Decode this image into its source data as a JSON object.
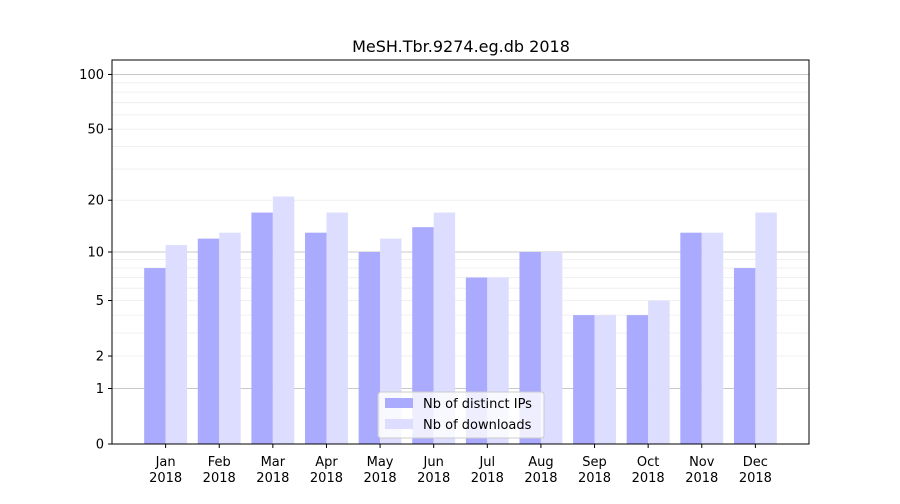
{
  "chart_data": {
    "type": "bar",
    "title": "MeSH.Tbr.9274.eg.db 2018",
    "xlabel": "",
    "ylabel": "",
    "y_scale": "log1p",
    "ylim": [
      0,
      120
    ],
    "y_ticks": [
      {
        "value": 0,
        "label": "0"
      },
      {
        "value": 1,
        "label": "1"
      },
      {
        "value": 2,
        "label": "2"
      },
      {
        "value": 5,
        "label": "5"
      },
      {
        "value": 10,
        "label": "10"
      },
      {
        "value": 20,
        "label": "20"
      },
      {
        "value": 50,
        "label": "50"
      },
      {
        "value": 100,
        "label": "100"
      }
    ],
    "categories": [
      {
        "month": "Jan",
        "year": "2018"
      },
      {
        "month": "Feb",
        "year": "2018"
      },
      {
        "month": "Mar",
        "year": "2018"
      },
      {
        "month": "Apr",
        "year": "2018"
      },
      {
        "month": "May",
        "year": "2018"
      },
      {
        "month": "Jun",
        "year": "2018"
      },
      {
        "month": "Jul",
        "year": "2018"
      },
      {
        "month": "Aug",
        "year": "2018"
      },
      {
        "month": "Sep",
        "year": "2018"
      },
      {
        "month": "Oct",
        "year": "2018"
      },
      {
        "month": "Nov",
        "year": "2018"
      },
      {
        "month": "Dec",
        "year": "2018"
      }
    ],
    "series": [
      {
        "name": "Nb of distinct IPs",
        "color": "#aaaaff",
        "values": [
          8,
          12,
          17,
          13,
          10,
          14,
          7,
          10,
          4,
          4,
          13,
          8
        ]
      },
      {
        "name": "Nb of downloads",
        "color": "#ddddff",
        "values": [
          11,
          13,
          21,
          17,
          12,
          17,
          7,
          10,
          4,
          5,
          13,
          17
        ]
      }
    ],
    "grid": true,
    "legend_position": "bottom-center"
  }
}
